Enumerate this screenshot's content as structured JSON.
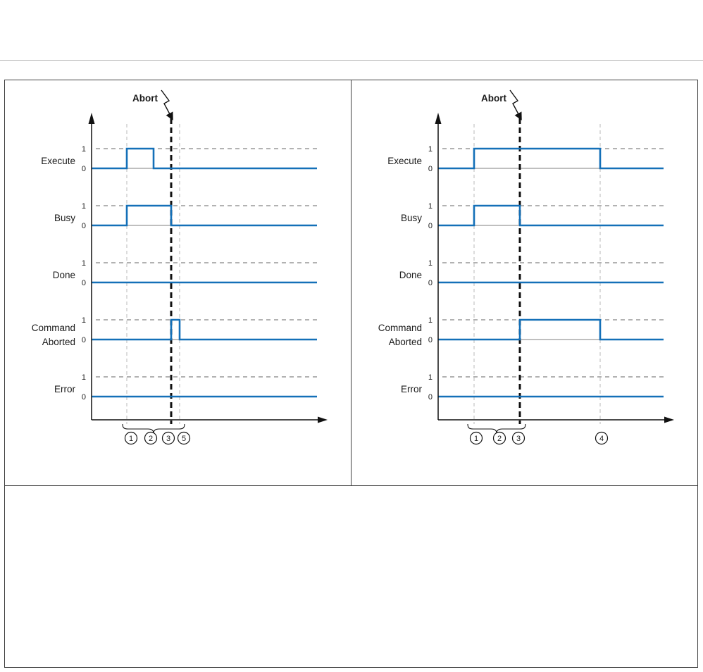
{
  "page": {
    "background": "#ffffff",
    "frame_border": "#3f3f3f",
    "top_rule": "#b5b5b5"
  },
  "colors": {
    "signal": "#1470b8",
    "level1_dash": "#666666",
    "event_dash": "#b9b9b9",
    "abort_dash": "#111111",
    "axis": "#111111",
    "zero_line": "#555555",
    "text": "#1a1a1a"
  },
  "chart_data": [
    {
      "type": "timing",
      "abort_label": "Abort",
      "levels": {
        "high": "1",
        "low": "0"
      },
      "signals": [
        {
          "label_lines": [
            "Execute"
          ],
          "pulses": [
            [
              50,
              88
            ]
          ]
        },
        {
          "label_lines": [
            "Busy"
          ],
          "pulses": [
            [
              50,
              113
            ]
          ]
        },
        {
          "label_lines": [
            "Done"
          ],
          "pulses": []
        },
        {
          "label_lines": [
            "Command",
            "Aborted"
          ],
          "pulses": [
            [
              113,
              125
            ]
          ]
        },
        {
          "label_lines": [
            "Error"
          ],
          "pulses": []
        }
      ],
      "abort_time": 113,
      "event_lines": [
        50,
        125
      ],
      "brace": {
        "from": 44,
        "to": 132
      },
      "markers": [
        {
          "label": "1",
          "time": 56
        },
        {
          "label": "2",
          "time": 84
        },
        {
          "label": "3",
          "time": 109
        },
        {
          "label": "5",
          "time": 131
        }
      ]
    },
    {
      "type": "timing",
      "abort_label": "Abort",
      "levels": {
        "high": "1",
        "low": "0"
      },
      "signals": [
        {
          "label_lines": [
            "Execute"
          ],
          "pulses": [
            [
              51,
              230
            ]
          ]
        },
        {
          "label_lines": [
            "Busy"
          ],
          "pulses": [
            [
              51,
              116
            ]
          ]
        },
        {
          "label_lines": [
            "Done"
          ],
          "pulses": []
        },
        {
          "label_lines": [
            "Command",
            "Aborted"
          ],
          "pulses": [
            [
              116,
              230
            ]
          ]
        },
        {
          "label_lines": [
            "Error"
          ],
          "pulses": []
        }
      ],
      "abort_time": 116,
      "event_lines": [
        51,
        230
      ],
      "brace": {
        "from": 42,
        "to": 124
      },
      "markers": [
        {
          "label": "1",
          "time": 54
        },
        {
          "label": "2",
          "time": 87
        },
        {
          "label": "3",
          "time": 114
        },
        {
          "label": "4",
          "time": 232
        }
      ]
    }
  ]
}
